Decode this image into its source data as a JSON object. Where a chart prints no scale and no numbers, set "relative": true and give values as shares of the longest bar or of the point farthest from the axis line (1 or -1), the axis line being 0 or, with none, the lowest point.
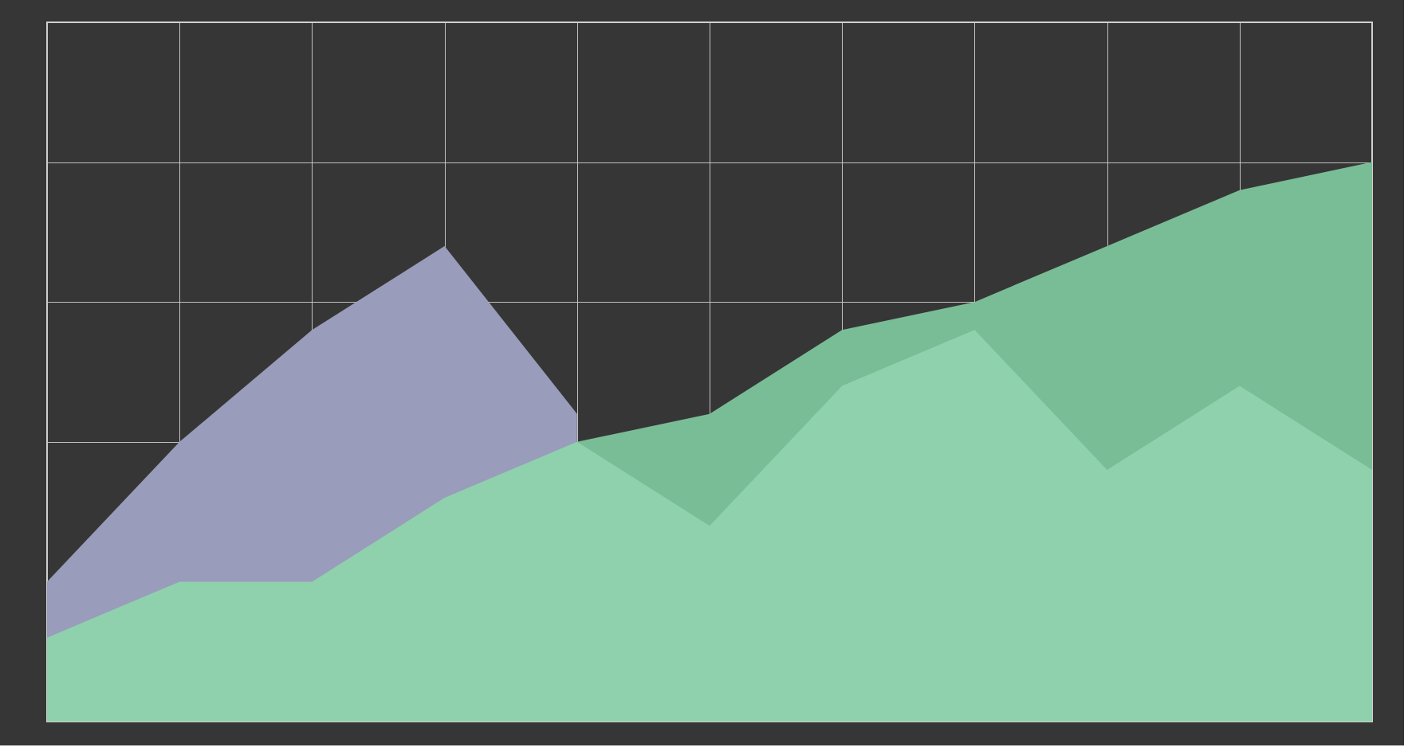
{
  "chart_data": {
    "type": "area",
    "relative": true,
    "grid": true,
    "categories": [
      null,
      null,
      null,
      null,
      null,
      null,
      null,
      null,
      null,
      null,
      null
    ],
    "series": [
      {
        "color": "#79bd96",
        "values": [
          null,
          null,
          null,
          null,
          0.5,
          0.55,
          0.7,
          0.75,
          0.85,
          0.95,
          1.0
        ]
      },
      {
        "color": "#9a9cbc",
        "values": [
          0.25,
          0.5,
          0.7,
          0.85,
          0.55,
          null,
          null,
          null,
          null,
          null,
          null
        ]
      },
      {
        "color": "#8fd1ac",
        "values": [
          0.15,
          0.25,
          0.25,
          0.4,
          0.5,
          0.35,
          0.6,
          0.7,
          0.45,
          0.6,
          0.45
        ]
      }
    ]
  }
}
